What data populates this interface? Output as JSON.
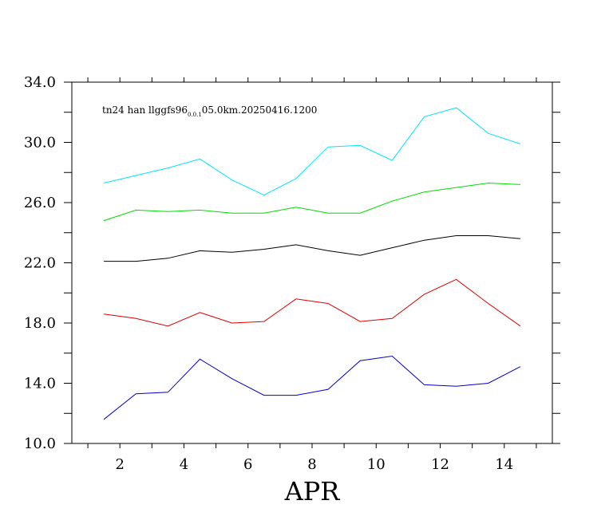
{
  "chart_data": {
    "type": "line",
    "title": {
      "prefix": "tn24 han llggfs96",
      "subscript": "0.0.1",
      "suffix": "05.0km.20250416.1200"
    },
    "xlabel": "APR",
    "ylabel": "",
    "xlim": [
      0.5,
      15.5
    ],
    "ylim": [
      10.0,
      34.0
    ],
    "x_ticks": [
      2,
      4,
      6,
      8,
      10,
      12,
      14
    ],
    "x_tick_labels": [
      "2",
      "4",
      "6",
      "8",
      "10",
      "12",
      "14"
    ],
    "y_ticks": [
      10,
      14,
      18,
      22,
      26,
      30,
      34
    ],
    "y_tick_labels": [
      "10.0",
      "14.0",
      "18.0",
      "22.0",
      "26.0",
      "30.0",
      "34.0"
    ],
    "grid": false,
    "x": [
      1.5,
      2.5,
      3.5,
      4.5,
      5.5,
      6.5,
      7.5,
      8.5,
      9.5,
      10.5,
      11.5,
      12.5,
      13.5,
      14.5
    ],
    "series": [
      {
        "color": "#00e5ff",
        "values": [
          27.3,
          27.8,
          28.3,
          28.9,
          27.5,
          26.5,
          27.6,
          29.7,
          29.8,
          28.8,
          31.7,
          32.3,
          30.6,
          29.9
        ]
      },
      {
        "color": "#00dd00",
        "values": [
          24.8,
          25.5,
          25.4,
          25.5,
          25.3,
          25.3,
          25.7,
          25.3,
          25.3,
          26.1,
          26.7,
          27.0,
          27.3,
          27.2
        ]
      },
      {
        "color": "#000000",
        "values": [
          22.1,
          22.1,
          22.3,
          22.8,
          22.7,
          22.9,
          23.2,
          22.8,
          22.5,
          23.0,
          23.5,
          23.8,
          23.8,
          23.6
        ]
      },
      {
        "color": "#dd0000",
        "values": [
          18.6,
          18.3,
          17.8,
          18.7,
          18.0,
          18.1,
          19.6,
          19.3,
          18.1,
          18.3,
          19.9,
          20.9,
          19.3,
          17.8
        ]
      },
      {
        "color": "#0000cc",
        "values": [
          11.6,
          13.3,
          13.4,
          15.6,
          14.3,
          13.2,
          13.2,
          13.6,
          15.5,
          15.8,
          13.9,
          13.8,
          14.0,
          15.1
        ]
      }
    ]
  }
}
